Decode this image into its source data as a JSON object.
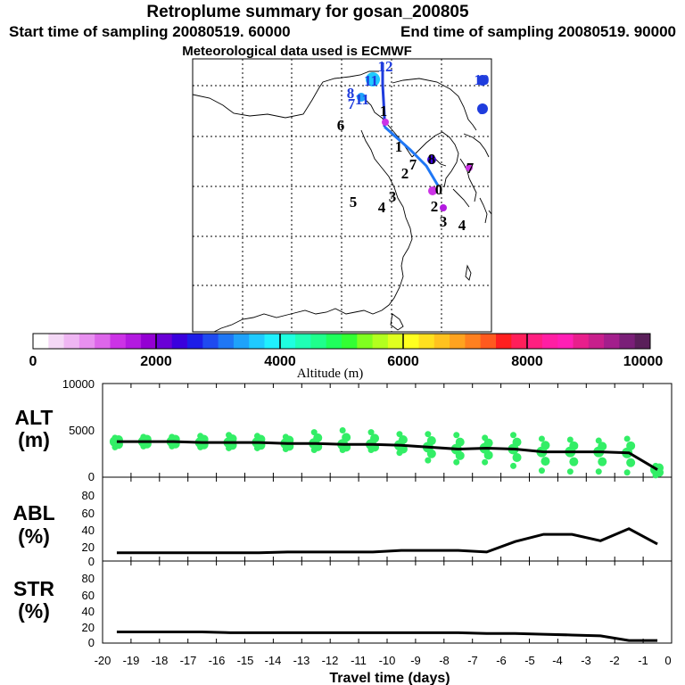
{
  "header": {
    "title": "Retroplume summary for gosan_200805",
    "start_label": "Start time of sampling 20080519. 60000",
    "end_label": "End time of sampling 20080519. 90000",
    "met_label": "Meteorological data used is ECMWF"
  },
  "colorbar": {
    "label": "Altitude  (m)",
    "ticks": [
      "0",
      "2000",
      "4000",
      "6000",
      "8000",
      "10000"
    ],
    "colors": [
      "#ffffff",
      "#f4d8f6",
      "#efb6f3",
      "#e890f0",
      "#dd66ea",
      "#cc33e6",
      "#b31ae0",
      "#9400d3",
      "#6a00d6",
      "#3a00dd",
      "#1d1de8",
      "#1f4af0",
      "#1f77f5",
      "#1fa2fa",
      "#1fcaff",
      "#1ff0ff",
      "#1fffe0",
      "#1fffb5",
      "#1fff8c",
      "#1fff5c",
      "#33ff33",
      "#80ff1f",
      "#b3ff1f",
      "#e0ff1f",
      "#ffff1f",
      "#ffe01f",
      "#ffc21f",
      "#ffa31f",
      "#ff801f",
      "#ff5a1f",
      "#ff1f1f",
      "#ff1f5a",
      "#ff1f80",
      "#ff1fa3",
      "#ff1fb5",
      "#e81f8c",
      "#c81f8c",
      "#a31f8c",
      "#7a1f78",
      "#5a1f5a"
    ]
  },
  "map": {
    "labels": [
      {
        "text": "12",
        "color": "#1f3cdd"
      },
      {
        "text": "11",
        "color": "#1fcaff"
      },
      {
        "text": "10",
        "color": "#1f4af0"
      },
      {
        "text": "8",
        "color": "#1fa2fa"
      },
      {
        "text": "7",
        "color": "#1fa2fa"
      },
      {
        "text": "11",
        "color": "#1fa2fa"
      },
      {
        "text": "9",
        "color": "#1f3cdd"
      },
      {
        "text": "6",
        "color": "#1fa2fa"
      },
      {
        "text": "1",
        "color": "#9400d3"
      },
      {
        "text": "1",
        "color": "#cc33e6"
      },
      {
        "text": "2",
        "color": "#cc33e6"
      },
      {
        "text": "7",
        "color": "#cc33e6"
      },
      {
        "text": "8",
        "color": "#3a00dd"
      },
      {
        "text": "7",
        "color": "#cc33e6"
      },
      {
        "text": "5",
        "color": "#cc33e6"
      },
      {
        "text": "3",
        "color": "#cc33e6"
      },
      {
        "text": "0",
        "color": "#cc33e6"
      },
      {
        "text": "4",
        "color": "#cc33e6"
      },
      {
        "text": "2",
        "color": "#cc33e6"
      },
      {
        "text": "3",
        "color": "#cc33e6"
      },
      {
        "text": "4",
        "color": "#cc33e6"
      }
    ]
  },
  "chart_data": [
    {
      "type": "scatter",
      "name": "ALT",
      "ylabel_line1": "ALT",
      "ylabel_line2": "(m)",
      "ylim": [
        0,
        10000
      ],
      "yticks": [
        "10000",
        "5000",
        "0"
      ],
      "x": [
        -19.5,
        -18.5,
        -17.5,
        -16.5,
        -15.5,
        -14.5,
        -13.5,
        -12.5,
        -11.5,
        -10.5,
        -9.5,
        -8.5,
        -7.5,
        -6.5,
        -5.5,
        -4.5,
        -3.5,
        -2.5,
        -1.5,
        -0.5
      ],
      "mean": [
        3800,
        3800,
        3800,
        3700,
        3700,
        3700,
        3600,
        3600,
        3500,
        3500,
        3400,
        3200,
        3000,
        3100,
        3000,
        2700,
        2700,
        2700,
        2600,
        800
      ],
      "scatter_high": [
        4200,
        4300,
        4300,
        4400,
        4500,
        4400,
        4300,
        4800,
        5000,
        4800,
        4600,
        4600,
        4500,
        4200,
        4500,
        4100,
        4000,
        3900,
        4100,
        1200
      ],
      "scatter_low": [
        3200,
        3300,
        3300,
        3200,
        3100,
        3100,
        3000,
        2900,
        2900,
        2900,
        2600,
        1800,
        1600,
        1600,
        1200,
        700,
        600,
        600,
        500,
        200
      ],
      "color": "#33ee66"
    },
    {
      "type": "line",
      "name": "ABL",
      "ylabel_line1": "ABL",
      "ylabel_line2": "(%)",
      "ylim": [
        0,
        100
      ],
      "yticks": [
        "80",
        "60",
        "40",
        "20",
        "0"
      ],
      "x": [
        -19.5,
        -18.5,
        -17.5,
        -16.5,
        -15.5,
        -14.5,
        -13.5,
        -12.5,
        -11.5,
        -10.5,
        -9.5,
        -8.5,
        -7.5,
        -6.5,
        -5.5,
        -4.5,
        -3.5,
        -2.5,
        -1.5,
        -0.5
      ],
      "values": [
        8,
        8,
        8,
        8,
        8,
        8,
        9,
        9,
        9,
        9,
        11,
        11,
        11,
        9,
        22,
        31,
        31,
        23,
        38,
        19
      ]
    },
    {
      "type": "line",
      "name": "STR",
      "ylabel_line1": "STR",
      "ylabel_line2": "(%)",
      "ylim": [
        0,
        100
      ],
      "yticks": [
        "80",
        "60",
        "40",
        "20",
        "0"
      ],
      "x": [
        -19.5,
        -18.5,
        -17.5,
        -16.5,
        -15.5,
        -14.5,
        -13.5,
        -12.5,
        -11.5,
        -10.5,
        -9.5,
        -8.5,
        -7.5,
        -6.5,
        -5.5,
        -4.5,
        -3.5,
        -2.5,
        -1.5,
        -0.5
      ],
      "values": [
        12,
        12,
        12,
        12,
        11,
        11,
        11,
        11,
        11,
        11,
        11,
        11,
        11,
        10,
        10,
        9,
        8,
        7,
        1,
        1
      ]
    }
  ],
  "xaxis": {
    "label": "Travel time (days)",
    "xlim": [
      -20,
      0
    ],
    "ticks": [
      "-20",
      "-19",
      "-18",
      "-17",
      "-16",
      "-15",
      "-14",
      "-13",
      "-12",
      "-11",
      "-10",
      "-9",
      "-8",
      "-7",
      "-6",
      "-5",
      "-4",
      "-3",
      "-2",
      "-1",
      "0"
    ]
  }
}
